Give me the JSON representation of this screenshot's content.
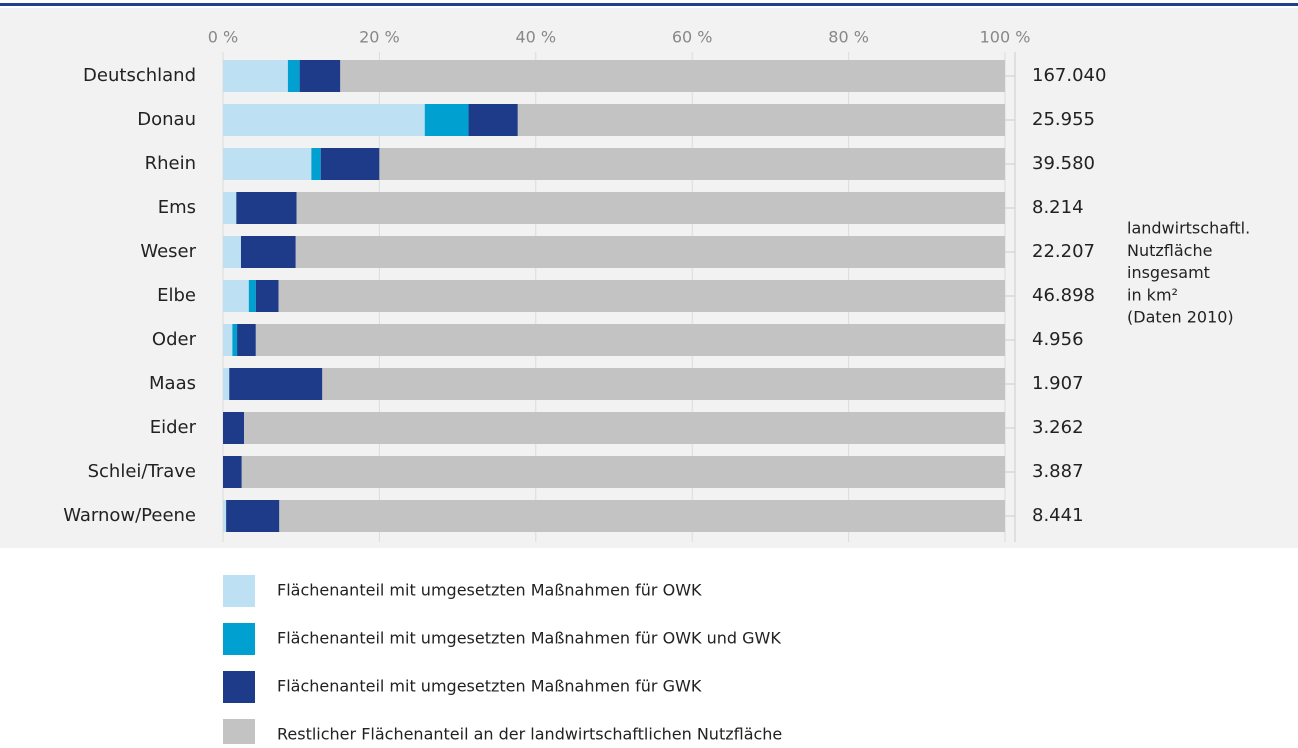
{
  "chart_data": {
    "type": "stacked_bar_horizontal",
    "categories": [
      "Deutschland",
      "Donau",
      "Rhein",
      "Ems",
      "Weser",
      "Elbe",
      "Oder",
      "Maas",
      "Eider",
      "Schlei/Trave",
      "Warnow/Peene"
    ],
    "series": [
      {
        "name": "Flächenanteil mit umgesetzten Maßnahmen für OWK",
        "color": "#bde0f3",
        "values": [
          8.3,
          25.8,
          11.3,
          1.7,
          2.3,
          3.3,
          1.2,
          0.8,
          0,
          0,
          0.4
        ]
      },
      {
        "name": "Flächenanteil mit umgesetzten Maßnahmen für OWK und GWK",
        "color": "#00a0d1",
        "values": [
          1.5,
          5.6,
          1.2,
          0,
          0,
          0.9,
          0.6,
          0,
          0,
          0,
          0
        ]
      },
      {
        "name": "Flächenanteil mit umgesetzten Maßnahmen für GWK",
        "color": "#1e3b8a",
        "values": [
          5.2,
          6.3,
          7.5,
          7.7,
          7.0,
          2.9,
          2.4,
          11.9,
          2.7,
          2.4,
          6.8
        ]
      },
      {
        "name": "Restlicher Flächenanteil an der landwirtschaftlichen Nutzfläche",
        "color": "#c3c3c3",
        "values": [
          85.0,
          62.3,
          80.0,
          90.6,
          90.7,
          92.9,
          95.8,
          87.3,
          97.3,
          97.6,
          92.8
        ]
      }
    ],
    "xlim": [
      0,
      100
    ],
    "xticks": [
      {
        "value": 0,
        "label": "0 %"
      },
      {
        "value": 20,
        "label": "20 %"
      },
      {
        "value": 40,
        "label": "40 %"
      },
      {
        "value": 60,
        "label": "60 %"
      },
      {
        "value": 80,
        "label": "80 %"
      },
      {
        "value": 100,
        "label": "100 %"
      }
    ],
    "grid": true,
    "area_labels": [
      "167.040",
      "25.955",
      "39.580",
      "8.214",
      "22.207",
      "46.898",
      "4.956",
      "1.907",
      "3.262",
      "3.887",
      "8.441"
    ],
    "annotation": [
      "landwirtschaftl.",
      "Nutzfläche",
      "insgesamt",
      "in km²",
      "(Daten 2010)"
    ]
  }
}
